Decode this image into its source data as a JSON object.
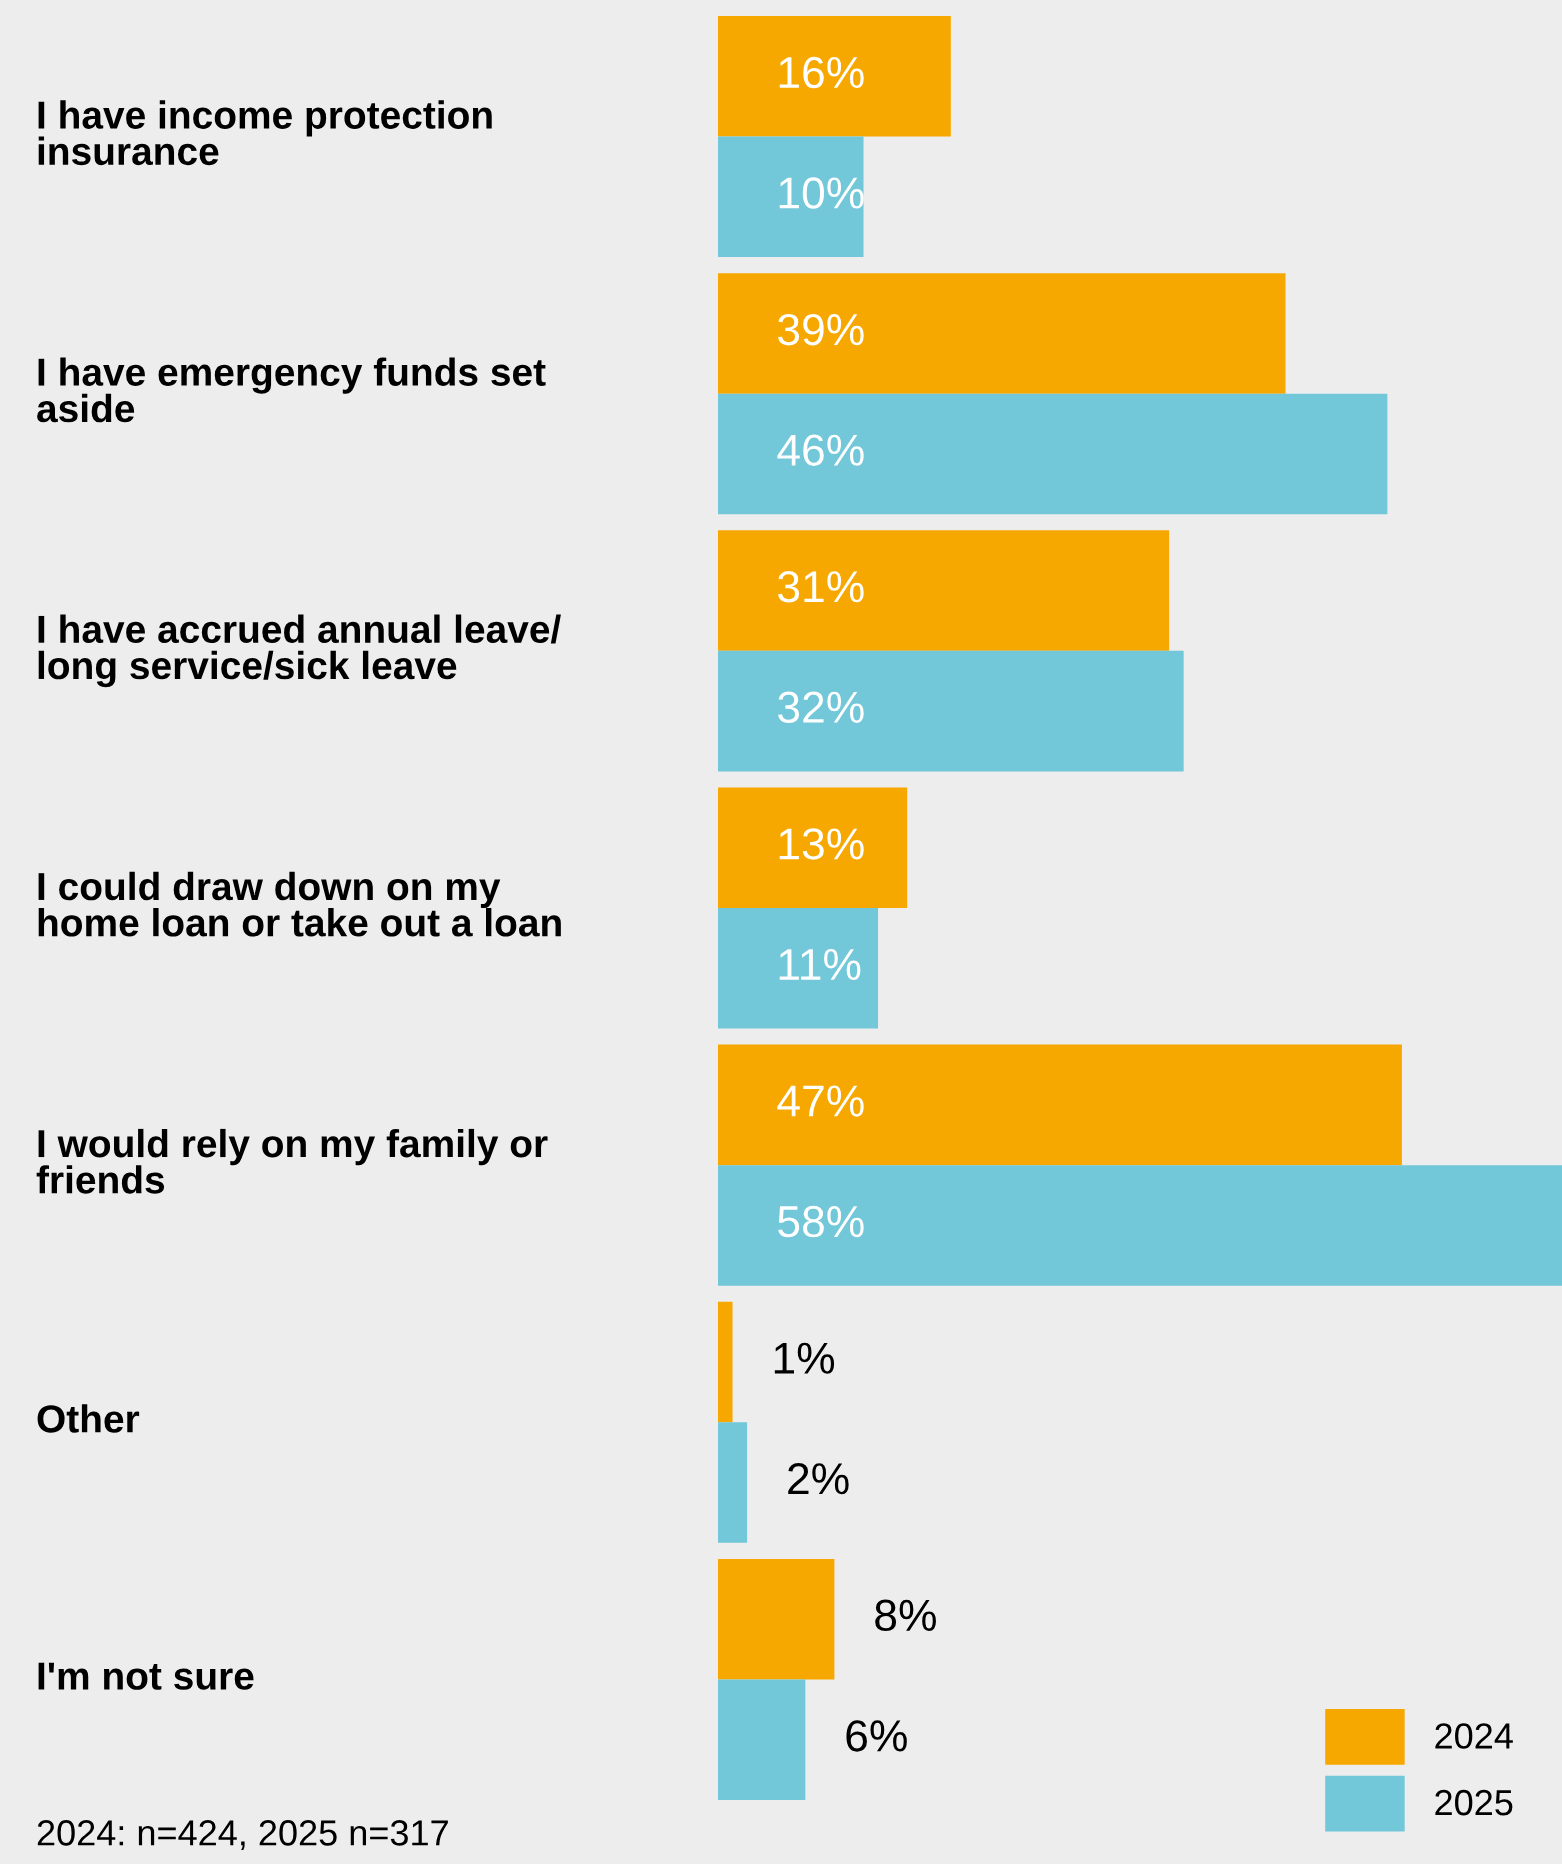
{
  "chart_data": {
    "type": "bar",
    "orientation": "horizontal",
    "categories": [
      "I have income protection\ninsurance",
      "I have emergency funds set\naside",
      "I have accrued annual leave/\nlong service/sick leave",
      "I could draw down on my\nhome loan or take out a loan",
      "I would rely on my family or\nfriends",
      "Other",
      "I'm not sure"
    ],
    "series": [
      {
        "name": "2024",
        "color": "#f7a800",
        "values": [
          16,
          39,
          31,
          13,
          47,
          1,
          8
        ],
        "value_labels": [
          "16%",
          "39%",
          "31%",
          "13%",
          "47%",
          "1%",
          "8%"
        ]
      },
      {
        "name": "2025",
        "color": "#72c7d9",
        "values": [
          10,
          46,
          32,
          11,
          58,
          2,
          6
        ],
        "value_labels": [
          "10%",
          "46%",
          "32%",
          "11%",
          "58%",
          "2%",
          "6%"
        ]
      }
    ],
    "legend": "bottom right",
    "annotations": [
      "2024: n=424, 2025 n=317"
    ]
  }
}
